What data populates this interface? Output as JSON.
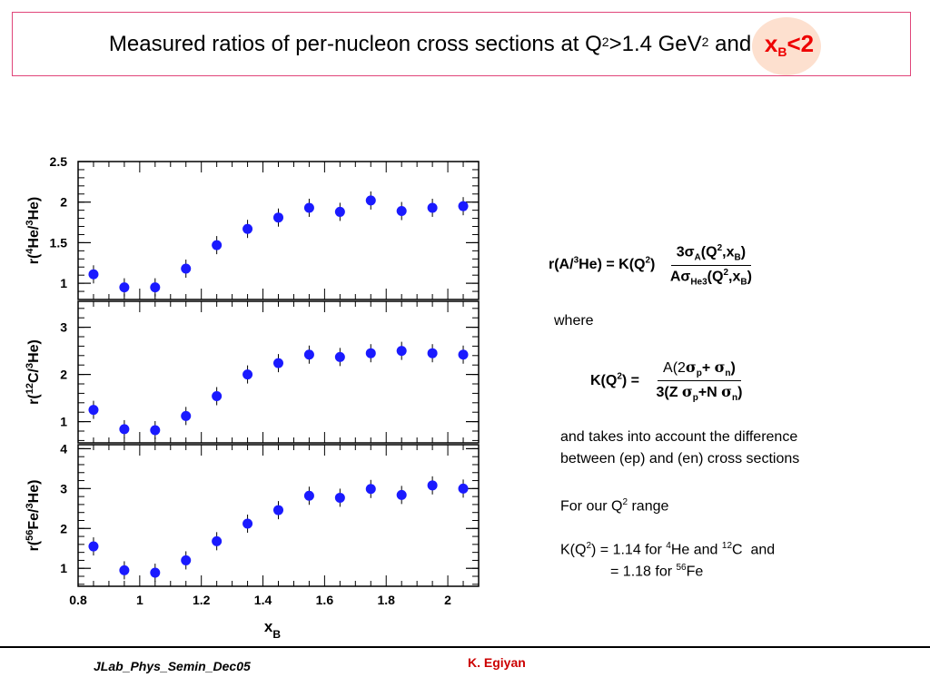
{
  "title": {
    "main": "Measured ratios of per-nucleon cross sections at Q",
    "sup1": "2",
    "mid": ">1.4 GeV",
    "sup2": "2",
    "and": " and ",
    "xb_x": "x",
    "xb_sub": "B",
    "xb_rest": "<2"
  },
  "colors": {
    "marker": "#1a1aff",
    "title_border": "#e0457a",
    "highlight": "#fde0cf",
    "accent_red": "#ee0000",
    "footer_red": "#cc0000"
  },
  "chart_data": [
    {
      "type": "scatter",
      "ylabel": "r(4He/3He)",
      "ylabel_parts": {
        "pre": "r(",
        "sup1": "4",
        "mid": "He/",
        "sup2": "3",
        "post": "He)"
      },
      "ylim": [
        0.8,
        2.5
      ],
      "yticks": [
        1,
        1.5,
        2,
        2.5
      ],
      "ytick_labels": [
        "1",
        "1.5",
        "2",
        "2.5"
      ],
      "x": [
        0.85,
        0.95,
        1.05,
        1.15,
        1.25,
        1.35,
        1.45,
        1.55,
        1.65,
        1.75,
        1.85,
        1.95,
        2.05
      ],
      "y": [
        1.11,
        0.95,
        0.95,
        1.18,
        1.47,
        1.67,
        1.81,
        1.93,
        1.88,
        2.02,
        1.89,
        1.93,
        1.95
      ]
    },
    {
      "type": "scatter",
      "ylabel": "r(12C/3He)",
      "ylabel_parts": {
        "pre": "r(",
        "sup1": "12",
        "mid": "C/",
        "sup2": "3",
        "post": "He)"
      },
      "ylim": [
        0.55,
        3.55
      ],
      "yticks": [
        1,
        2,
        3
      ],
      "ytick_labels": [
        "1",
        "2",
        "3"
      ],
      "x": [
        0.85,
        0.95,
        1.05,
        1.15,
        1.25,
        1.35,
        1.45,
        1.55,
        1.65,
        1.75,
        1.85,
        1.95,
        2.05
      ],
      "y": [
        1.25,
        0.84,
        0.82,
        1.12,
        1.54,
        2.0,
        2.24,
        2.42,
        2.37,
        2.45,
        2.5,
        2.45,
        2.42
      ]
    },
    {
      "type": "scatter",
      "ylabel": "r(56Fe/3He)",
      "ylabel_parts": {
        "pre": "r(",
        "sup1": "56",
        "mid": "Fe/",
        "sup2": "3",
        "post": "He)"
      },
      "ylim": [
        0.55,
        4.1
      ],
      "yticks": [
        1,
        2,
        3,
        4
      ],
      "ytick_labels": [
        "1",
        "2",
        "3",
        "4"
      ],
      "x": [
        0.85,
        0.95,
        1.05,
        1.15,
        1.25,
        1.35,
        1.45,
        1.55,
        1.65,
        1.75,
        1.85,
        1.95,
        2.05
      ],
      "y": [
        1.55,
        0.95,
        0.89,
        1.2,
        1.68,
        2.12,
        2.46,
        2.82,
        2.77,
        2.99,
        2.84,
        3.08,
        3.0
      ],
      "xlabel": "x",
      "xlabel_sub": "B",
      "xlim": [
        0.8,
        2.1
      ],
      "xticks": [
        0.8,
        1,
        1.2,
        1.4,
        1.6,
        1.8,
        2
      ],
      "xtick_labels": [
        "0.8",
        "1",
        "1.2",
        "1.4",
        "1.6",
        "1.8",
        "2"
      ]
    }
  ],
  "formula1": {
    "lhs": "r(A/",
    "lhs_sup": "3",
    "lhs_rest": "He) = K(Q",
    "lhs_sup2": "2",
    "lhs_end": ")",
    "num": "3σ",
    "num_sub": "A",
    "num_rest": "(Q",
    "num_sup": "2",
    "num_mid": ",x",
    "num_sub2": "B",
    "num_end": ")",
    "den": "Aσ",
    "den_sub": "He3",
    "den_rest": "(Q",
    "den_sup": "2",
    "den_mid": ",x",
    "den_sub2": "B",
    "den_end": ")"
  },
  "where": "where",
  "formula2": {
    "lhs": "K(Q",
    "lhs_sup": "2",
    "lhs_rest": ") =",
    "num_a": "A(2",
    "num_sigma1": "σ",
    "num_sub1": "p",
    "num_plus": "+ ",
    "num_sigma2": "σ",
    "num_sub2": "n",
    "num_end": ")",
    "den_a": "3(Z ",
    "den_sigma1": "σ",
    "den_sub1": "p",
    "den_plus": "+N ",
    "den_sigma2": "σ",
    "den_sub2": "n",
    "den_end": ")"
  },
  "note": {
    "line1": "and takes into account the difference",
    "line2": "between (ep) and (en) cross sections",
    "line3_a": "For our Q",
    "line3_sup": "2",
    "line3_b": " range",
    "line4_a": "K(Q",
    "line4_sup": "2",
    "line4_b": ") = 1.14 for ",
    "line4_sup2": "4",
    "line4_c": "He and ",
    "line4_sup3": "12",
    "line4_d": "C  and",
    "line5_a": "= 1.18 for ",
    "line5_sup": "56",
    "line5_b": "Fe"
  },
  "footer": {
    "left": "JLab_Phys_Semin_Dec05",
    "right": "K. Egiyan"
  }
}
